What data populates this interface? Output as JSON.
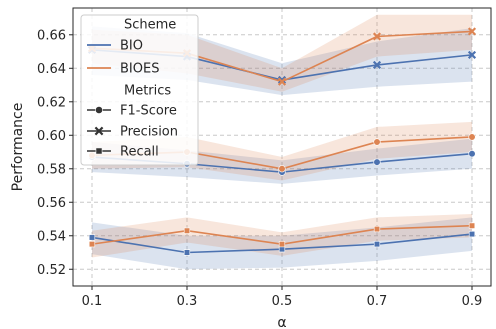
{
  "chart_data": {
    "type": "line",
    "xlabel": "α",
    "ylabel": "Performance",
    "x": [
      0.1,
      0.3,
      0.5,
      0.7,
      0.9
    ],
    "xticks": [
      "0.1",
      "0.3",
      "0.5",
      "0.7",
      "0.9"
    ],
    "yticks": [
      "0.52",
      "0.54",
      "0.56",
      "0.58",
      "0.60",
      "0.62",
      "0.64",
      "0.66"
    ],
    "xlim": [
      0.06,
      0.94
    ],
    "ylim": [
      0.51,
      0.676
    ],
    "grid": true,
    "legend": {
      "placement": "top-left",
      "scheme_title": "Scheme",
      "metrics_title": "Metrics",
      "schemes": [
        {
          "label": "BIO",
          "color": "#4c72b0"
        },
        {
          "label": "BIOES",
          "color": "#dd8452"
        }
      ],
      "metrics": [
        {
          "label": "F1-Score",
          "marker": "circle"
        },
        {
          "label": "Precision",
          "marker": "x"
        },
        {
          "label": "Recall",
          "marker": "square"
        }
      ]
    },
    "series": [
      {
        "scheme": "BIO",
        "metric": "F1-Score",
        "color": "#4c72b0",
        "marker": "circle",
        "values": [
          0.587,
          0.583,
          0.578,
          0.584,
          0.589
        ],
        "ci_low": [
          0.578,
          0.575,
          0.571,
          0.576,
          0.58
        ],
        "ci_high": [
          0.596,
          0.591,
          0.585,
          0.592,
          0.598
        ]
      },
      {
        "scheme": "BIOES",
        "metric": "F1-Score",
        "color": "#dd8452",
        "marker": "circle",
        "values": [
          0.588,
          0.59,
          0.58,
          0.596,
          0.599
        ],
        "ci_low": [
          0.58,
          0.581,
          0.573,
          0.586,
          0.59
        ],
        "ci_high": [
          0.596,
          0.599,
          0.587,
          0.605,
          0.608
        ]
      },
      {
        "scheme": "BIO",
        "metric": "Precision",
        "color": "#4c72b0",
        "marker": "x",
        "values": [
          0.651,
          0.647,
          0.633,
          0.642,
          0.648
        ],
        "ci_low": [
          0.636,
          0.633,
          0.624,
          0.629,
          0.632
        ],
        "ci_high": [
          0.665,
          0.661,
          0.643,
          0.656,
          0.664
        ]
      },
      {
        "scheme": "BIOES",
        "metric": "Precision",
        "color": "#dd8452",
        "marker": "x",
        "values": [
          0.652,
          0.649,
          0.632,
          0.659,
          0.662
        ],
        "ci_low": [
          0.643,
          0.637,
          0.626,
          0.647,
          0.651
        ],
        "ci_high": [
          0.663,
          0.66,
          0.64,
          0.672,
          0.672
        ]
      },
      {
        "scheme": "BIO",
        "metric": "Recall",
        "color": "#4c72b0",
        "marker": "square",
        "values": [
          0.539,
          0.53,
          0.532,
          0.535,
          0.541
        ],
        "ci_low": [
          0.529,
          0.52,
          0.521,
          0.525,
          0.531
        ],
        "ci_high": [
          0.548,
          0.54,
          0.54,
          0.545,
          0.551
        ]
      },
      {
        "scheme": "BIOES",
        "metric": "Recall",
        "color": "#dd8452",
        "marker": "square",
        "values": [
          0.535,
          0.543,
          0.535,
          0.544,
          0.546
        ],
        "ci_low": [
          0.527,
          0.536,
          0.528,
          0.537,
          0.539
        ],
        "ci_high": [
          0.543,
          0.551,
          0.542,
          0.551,
          0.553
        ]
      }
    ]
  }
}
